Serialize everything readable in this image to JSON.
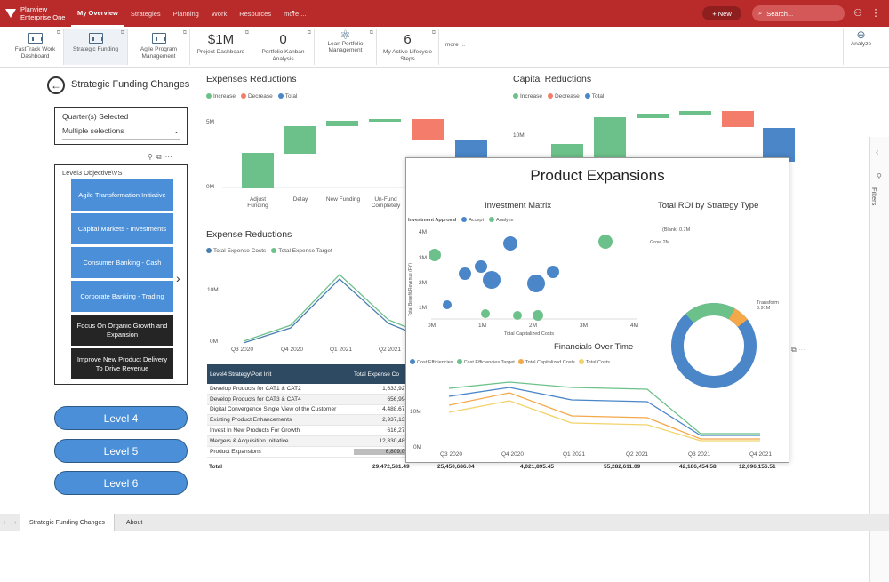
{
  "topbar": {
    "logo_line1": "Planview",
    "logo_line2": "Enterprise One",
    "nav": [
      "My Overview",
      "Strategies",
      "Planning",
      "Work",
      "Resources",
      "more ..."
    ],
    "new_label": "+ New",
    "search_placeholder": "Search..."
  },
  "tiles": [
    {
      "label": "FastTrack Work Dashboard",
      "kind": "icon"
    },
    {
      "label": "Strategic Funding",
      "kind": "icon"
    },
    {
      "label": "Agile Program Management",
      "kind": "icon"
    },
    {
      "label": "Project Dashboard",
      "kind": "number",
      "value": "$1M"
    },
    {
      "label": "Portfolio Kanban Analysis",
      "kind": "number",
      "value": "0"
    },
    {
      "label": "Lean Portfolio Management",
      "kind": "icon"
    },
    {
      "label": "My Active Lifecycle Steps",
      "kind": "number",
      "value": "6"
    },
    {
      "label": "more ...",
      "kind": "text"
    }
  ],
  "analyze_label": "Analyze",
  "page": {
    "title": "Strategic Funding Changes",
    "quarter_label": "Quarter(s) Selected",
    "quarter_value": "Multiple selections",
    "objective_label": "Level3 Objective\\VS",
    "objectives": [
      {
        "label": "Agile Transformation Initiative",
        "style": "blue"
      },
      {
        "label": "Capital Markets - Investments",
        "style": "blue"
      },
      {
        "label": "Consumer Banking - Cash",
        "style": "blue"
      },
      {
        "label": "Corporate Banking - Trading",
        "style": "blue"
      },
      {
        "label": "Focus On Organic Growth and Expansion",
        "style": "dark"
      },
      {
        "label": "Improve New Product Delivery To Drive Revenue",
        "style": "dark"
      }
    ],
    "levels": [
      "Level 4",
      "Level 5",
      "Level 6"
    ]
  },
  "expenses_reductions": {
    "title": "Expenses Reductions",
    "legend": [
      "Increase",
      "Decrease",
      "Total"
    ],
    "yticks": [
      "5M",
      "0M"
    ],
    "categories": [
      "Adjust Funding",
      "Delay",
      "New Funding",
      "Un-Fund Completely"
    ]
  },
  "capital_reductions": {
    "title": "Capital Reductions",
    "legend": [
      "Increase",
      "Decrease",
      "Total"
    ],
    "yticks": [
      "10M"
    ]
  },
  "expense_reductions_line": {
    "title": "Expense Reductions",
    "legend": [
      "Total Expense Costs",
      "Total Expense Target"
    ],
    "yticks": [
      "10M",
      "0M"
    ],
    "xticks": [
      "Q3 2020",
      "Q4 2020",
      "Q1 2021",
      "Q2 2021"
    ]
  },
  "table": {
    "headers": [
      "Level4 Strategy\\Port Init",
      "Total Expense Co"
    ],
    "rows": [
      [
        "Develop Products for CAT1 & CAT2",
        "1,633,927"
      ],
      [
        "Develop Products for CAT3 & CAT4",
        "656,994"
      ],
      [
        "Digital Convergence Single View of the Customer",
        "4,488,671"
      ],
      [
        "Existing Product Enhancements",
        "2,937,132"
      ],
      [
        "Invest In New Products For Growth",
        "616,273"
      ],
      [
        "Mergers & Acquisition Initiative",
        "12,330,489"
      ],
      [
        "Product Expansions",
        "6,809,09"
      ]
    ],
    "total_label": "Total",
    "totals": [
      "29,472,581.49",
      "25,450,686.04",
      "4,021,895.45",
      "55,282,611.09",
      "42,186,454.58",
      "12,096,156.51"
    ]
  },
  "overlay": {
    "title": "Product Expansions",
    "investment_matrix": {
      "title": "Investment Matrix",
      "legend_title": "Investment Approval",
      "legend": [
        "Accept",
        "Analyze"
      ],
      "ylabel": "Total Benefit/Revenue (FY)",
      "xlabel": "Total Capitalized Costs",
      "yticks": [
        "4M",
        "3M",
        "2M",
        "1M"
      ],
      "xticks": [
        "0M",
        "1M",
        "2M",
        "3M",
        "4M"
      ]
    },
    "roi": {
      "title": "Total ROI by Strategy Type",
      "labels": [
        "(Blank) 0.7M",
        "Grow 2M",
        "Transform 6.91M"
      ]
    },
    "financials": {
      "title": "Financials Over Time",
      "legend": [
        "Cost Efficiencies",
        "Cost Efficiencies Target",
        "Total Capitalized Costs",
        "Total Costs"
      ],
      "yticks": [
        "10M",
        "0M"
      ],
      "xticks": [
        "Q3 2020",
        "Q4 2020",
        "Q1 2021",
        "Q2 2021",
        "Q3 2021",
        "Q4 2021"
      ]
    }
  },
  "bottom_tabs": [
    "Strategic Funding Changes",
    "About"
  ],
  "filters_label": "Filters",
  "colors": {
    "brand": "#b92b2b",
    "increase": "#6cc18a",
    "decrease": "#f47c6b",
    "total": "#4a86c8",
    "objective_blue": "#4a8fd8",
    "objective_dark": "#252525"
  }
}
